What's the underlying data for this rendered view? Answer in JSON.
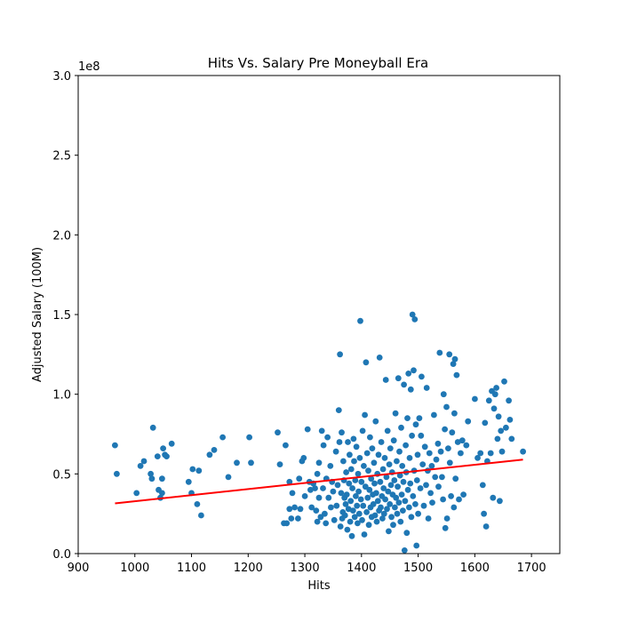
{
  "chart_data": {
    "type": "scatter",
    "title": "Hits Vs. Salary Pre Moneyball Era",
    "xlabel": "Hits",
    "ylabel": "Adjusted Salary (100M)",
    "y_offset_text": "1e8",
    "xlim": [
      900,
      1750
    ],
    "ylim": [
      0,
      3.0
    ],
    "y_multiplier": 100000000,
    "xticks": [
      900,
      1000,
      1100,
      1200,
      1300,
      1400,
      1500,
      1600,
      1700
    ],
    "yticks": [
      0.0,
      0.5,
      1.0,
      1.5,
      2.0,
      2.5,
      3.0
    ],
    "ytick_labels": [
      "0.0",
      "0.5",
      "1.0",
      "1.5",
      "2.0",
      "2.5",
      "3.0"
    ],
    "grid": false,
    "colors": {
      "points": "#1f77b4",
      "trend": "#ff0000"
    },
    "trendline": {
      "x": [
        965,
        1685
      ],
      "y": [
        0.315,
        0.59
      ]
    },
    "series": [
      {
        "points": [
          [
            965,
            0.68
          ],
          [
            968,
            0.5
          ],
          [
            1003,
            0.38
          ],
          [
            1010,
            0.55
          ],
          [
            1016,
            0.58
          ],
          [
            1028,
            0.5
          ],
          [
            1030,
            0.47
          ],
          [
            1032,
            0.79
          ],
          [
            1040,
            0.61
          ],
          [
            1042,
            0.4
          ],
          [
            1045,
            0.35
          ],
          [
            1048,
            0.38
          ],
          [
            1048,
            0.47
          ],
          [
            1050,
            0.66
          ],
          [
            1053,
            0.62
          ],
          [
            1056,
            0.61
          ],
          [
            1065,
            0.69
          ],
          [
            1095,
            0.45
          ],
          [
            1100,
            0.38
          ],
          [
            1102,
            0.53
          ],
          [
            1110,
            0.31
          ],
          [
            1113,
            0.52
          ],
          [
            1117,
            0.24
          ],
          [
            1132,
            0.62
          ],
          [
            1140,
            0.65
          ],
          [
            1155,
            0.73
          ],
          [
            1165,
            0.48
          ],
          [
            1180,
            0.57
          ],
          [
            1202,
            0.73
          ],
          [
            1205,
            0.57
          ],
          [
            1252,
            0.76
          ],
          [
            1256,
            0.56
          ],
          [
            1263,
            0.19
          ],
          [
            1266,
            0.68
          ],
          [
            1268,
            0.19
          ],
          [
            1273,
            0.45
          ],
          [
            1273,
            0.28
          ],
          [
            1276,
            0.22
          ],
          [
            1278,
            0.38
          ],
          [
            1282,
            0.29
          ],
          [
            1288,
            0.22
          ],
          [
            1290,
            0.47
          ],
          [
            1292,
            0.28
          ],
          [
            1295,
            0.58
          ],
          [
            1298,
            0.6
          ],
          [
            1300,
            0.36
          ],
          [
            1305,
            0.78
          ],
          [
            1308,
            0.45
          ],
          [
            1310,
            0.4
          ],
          [
            1312,
            0.29
          ],
          [
            1315,
            0.44
          ],
          [
            1318,
            0.41
          ],
          [
            1320,
            0.27
          ],
          [
            1322,
            0.2
          ],
          [
            1322,
            0.5
          ],
          [
            1325,
            0.35
          ],
          [
            1325,
            0.57
          ],
          [
            1328,
            0.23
          ],
          [
            1330,
            0.77
          ],
          [
            1332,
            0.41
          ],
          [
            1333,
            0.68
          ],
          [
            1335,
            0.25
          ],
          [
            1337,
            0.19
          ],
          [
            1338,
            0.47
          ],
          [
            1340,
            0.73
          ],
          [
            1342,
            0.35
          ],
          [
            1345,
            0.55
          ],
          [
            1346,
            0.29
          ],
          [
            1348,
            0.45
          ],
          [
            1350,
            0.39
          ],
          [
            1352,
            0.21
          ],
          [
            1355,
            0.64
          ],
          [
            1356,
            0.3
          ],
          [
            1358,
            0.43
          ],
          [
            1360,
            0.9
          ],
          [
            1361,
            0.7
          ],
          [
            1362,
            1.25
          ],
          [
            1363,
            0.17
          ],
          [
            1364,
            0.38
          ],
          [
            1365,
            0.76
          ],
          [
            1366,
            0.22
          ],
          [
            1367,
            0.26
          ],
          [
            1368,
            0.58
          ],
          [
            1369,
            0.46
          ],
          [
            1370,
            0.35
          ],
          [
            1371,
            0.24
          ],
          [
            1372,
            0.31
          ],
          [
            1373,
            0.51
          ],
          [
            1374,
            0.37
          ],
          [
            1375,
            0.15
          ],
          [
            1376,
            0.7
          ],
          [
            1377,
            0.28
          ],
          [
            1378,
            0.44
          ],
          [
            1379,
            0.62
          ],
          [
            1380,
            0.2
          ],
          [
            1381,
            0.33
          ],
          [
            1382,
            0.53
          ],
          [
            1383,
            0.11
          ],
          [
            1384,
            0.41
          ],
          [
            1385,
            0.27
          ],
          [
            1386,
            0.72
          ],
          [
            1387,
            0.58
          ],
          [
            1388,
            0.23
          ],
          [
            1389,
            0.46
          ],
          [
            1390,
            0.36
          ],
          [
            1391,
            0.67
          ],
          [
            1392,
            0.3
          ],
          [
            1393,
            0.19
          ],
          [
            1394,
            0.5
          ],
          [
            1395,
            0.39
          ],
          [
            1396,
            0.25
          ],
          [
            1397,
            0.6
          ],
          [
            1398,
            1.46
          ],
          [
            1399,
            0.34
          ],
          [
            1400,
            0.45
          ],
          [
            1401,
            0.21
          ],
          [
            1402,
            0.77
          ],
          [
            1403,
            0.3
          ],
          [
            1404,
            0.55
          ],
          [
            1405,
            0.12
          ],
          [
            1406,
            0.87
          ],
          [
            1407,
            0.42
          ],
          [
            1408,
            1.2
          ],
          [
            1409,
            0.26
          ],
          [
            1410,
            0.63
          ],
          [
            1411,
            0.35
          ],
          [
            1412,
            0.52
          ],
          [
            1413,
            0.18
          ],
          [
            1414,
            0.4
          ],
          [
            1415,
            0.73
          ],
          [
            1416,
            0.29
          ],
          [
            1417,
            0.47
          ],
          [
            1418,
            0.23
          ],
          [
            1419,
            0.66
          ],
          [
            1420,
            0.37
          ],
          [
            1421,
            0.31
          ],
          [
            1422,
            0.57
          ],
          [
            1423,
            0.44
          ],
          [
            1424,
            0.24
          ],
          [
            1425,
            0.83
          ],
          [
            1426,
            0.38
          ],
          [
            1427,
            0.2
          ],
          [
            1428,
            0.5
          ],
          [
            1429,
            0.33
          ],
          [
            1430,
            0.62
          ],
          [
            1431,
            0.27
          ],
          [
            1432,
            1.23
          ],
          [
            1433,
            0.45
          ],
          [
            1434,
            0.29
          ],
          [
            1435,
            0.7
          ],
          [
            1436,
            0.36
          ],
          [
            1437,
            0.22
          ],
          [
            1438,
            0.53
          ],
          [
            1439,
            0.41
          ],
          [
            1440,
            0.25
          ],
          [
            1441,
            0.6
          ],
          [
            1442,
            0.34
          ],
          [
            1443,
            1.09
          ],
          [
            1444,
            0.48
          ],
          [
            1445,
            0.28
          ],
          [
            1446,
            0.77
          ],
          [
            1447,
            0.39
          ],
          [
            1448,
            0.14
          ],
          [
            1449,
            0.56
          ],
          [
            1450,
            0.31
          ],
          [
            1451,
            0.66
          ],
          [
            1452,
            0.43
          ],
          [
            1453,
            0.23
          ],
          [
            1454,
            0.51
          ],
          [
            1455,
            0.37
          ],
          [
            1456,
            0.18
          ],
          [
            1457,
            0.71
          ],
          [
            1458,
            0.46
          ],
          [
            1459,
            0.29
          ],
          [
            1460,
            0.88
          ],
          [
            1461,
            0.35
          ],
          [
            1462,
            0.58
          ],
          [
            1463,
            0.25
          ],
          [
            1464,
            0.42
          ],
          [
            1465,
            1.1
          ],
          [
            1466,
            0.32
          ],
          [
            1467,
            0.64
          ],
          [
            1468,
            0.49
          ],
          [
            1469,
            0.2
          ],
          [
            1470,
            0.79
          ],
          [
            1471,
            0.37
          ],
          [
            1472,
            0.55
          ],
          [
            1473,
            0.27
          ],
          [
            1474,
            0.45
          ],
          [
            1475,
            1.06
          ],
          [
            1476,
            0.02
          ],
          [
            1477,
            0.33
          ],
          [
            1478,
            0.68
          ],
          [
            1479,
            0.51
          ],
          [
            1480,
            0.13
          ],
          [
            1481,
            0.85
          ],
          [
            1482,
            0.4
          ],
          [
            1483,
            1.13
          ],
          [
            1484,
            0.29
          ],
          [
            1485,
            0.6
          ],
          [
            1486,
            0.44
          ],
          [
            1487,
            1.03
          ],
          [
            1488,
            0.23
          ],
          [
            1489,
            0.74
          ],
          [
            1490,
            1.5
          ],
          [
            1491,
            0.36
          ],
          [
            1492,
            1.15
          ],
          [
            1493,
            0.52
          ],
          [
            1494,
            1.47
          ],
          [
            1495,
            0.31
          ],
          [
            1496,
            0.81
          ],
          [
            1497,
            0.05
          ],
          [
            1498,
            0.46
          ],
          [
            1499,
            0.62
          ],
          [
            1500,
            0.25
          ],
          [
            1502,
            0.85
          ],
          [
            1504,
            0.41
          ],
          [
            1505,
            0.74
          ],
          [
            1506,
            1.11
          ],
          [
            1508,
            0.56
          ],
          [
            1510,
            0.3
          ],
          [
            1512,
            0.67
          ],
          [
            1514,
            0.43
          ],
          [
            1515,
            1.04
          ],
          [
            1517,
            0.52
          ],
          [
            1518,
            0.22
          ],
          [
            1520,
            0.63
          ],
          [
            1522,
            0.38
          ],
          [
            1524,
            0.55
          ],
          [
            1525,
            0.32
          ],
          [
            1528,
            0.87
          ],
          [
            1530,
            0.48
          ],
          [
            1532,
            0.59
          ],
          [
            1535,
            0.69
          ],
          [
            1536,
            0.42
          ],
          [
            1538,
            1.26
          ],
          [
            1540,
            0.64
          ],
          [
            1542,
            0.48
          ],
          [
            1544,
            0.34
          ],
          [
            1545,
            1.0
          ],
          [
            1547,
            0.78
          ],
          [
            1548,
            0.16
          ],
          [
            1550,
            0.92
          ],
          [
            1551,
            0.22
          ],
          [
            1553,
            0.66
          ],
          [
            1555,
            1.25
          ],
          [
            1556,
            0.57
          ],
          [
            1558,
            0.36
          ],
          [
            1560,
            0.76
          ],
          [
            1562,
            1.19
          ],
          [
            1563,
            0.29
          ],
          [
            1564,
            0.88
          ],
          [
            1565,
            1.22
          ],
          [
            1566,
            0.47
          ],
          [
            1568,
            1.12
          ],
          [
            1570,
            0.7
          ],
          [
            1572,
            0.34
          ],
          [
            1575,
            0.63
          ],
          [
            1578,
            0.71
          ],
          [
            1580,
            0.37
          ],
          [
            1585,
            0.68
          ],
          [
            1588,
            0.83
          ],
          [
            1600,
            0.97
          ],
          [
            1605,
            0.6
          ],
          [
            1610,
            0.63
          ],
          [
            1614,
            0.43
          ],
          [
            1616,
            0.25
          ],
          [
            1618,
            0.82
          ],
          [
            1620,
            0.17
          ],
          [
            1622,
            0.58
          ],
          [
            1625,
            0.96
          ],
          [
            1628,
            0.63
          ],
          [
            1630,
            1.02
          ],
          [
            1632,
            0.35
          ],
          [
            1634,
            0.91
          ],
          [
            1636,
            1.0
          ],
          [
            1638,
            1.04
          ],
          [
            1640,
            0.72
          ],
          [
            1642,
            0.86
          ],
          [
            1644,
            0.33
          ],
          [
            1646,
            0.77
          ],
          [
            1648,
            0.64
          ],
          [
            1652,
            1.08
          ],
          [
            1655,
            0.79
          ],
          [
            1660,
            0.96
          ],
          [
            1662,
            0.84
          ],
          [
            1665,
            0.72
          ],
          [
            1685,
            0.64
          ]
        ]
      }
    ]
  }
}
